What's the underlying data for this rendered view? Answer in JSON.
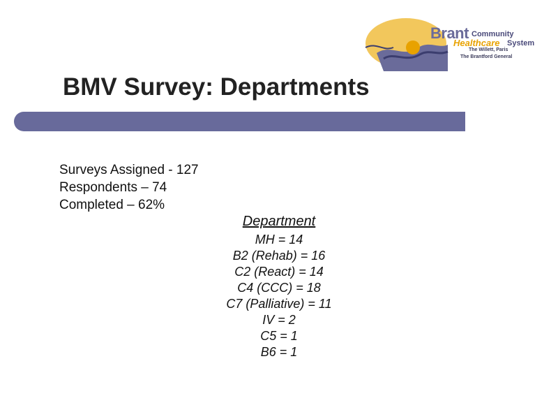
{
  "logo": {
    "brand_line1_a": "Brant",
    "brand_line1_b": "Community",
    "brand_line2_a": "Healthcare",
    "brand_line2_b": "System",
    "site1": "The Willett, Paris",
    "site2": "The Brantford General",
    "colors": {
      "sun": "#f2c75c",
      "wave": "#6a6b9a",
      "wave_dark": "#3b3d6e",
      "accent": "#e8a200"
    }
  },
  "slide": {
    "title": "BMV Survey: Departments",
    "title_bar_color": "#686a9b",
    "stats": [
      "Surveys Assigned - 127",
      "Respondents – 74",
      "Completed – 62%"
    ],
    "department": {
      "heading": "Department",
      "items": [
        "MH = 14",
        "B2 (Rehab) = 16",
        "C2 (React) = 14",
        "C4 (CCC) = 18",
        "C7 (Palliative) = 11",
        "IV = 2",
        "C5 = 1",
        "B6 = 1"
      ]
    }
  }
}
